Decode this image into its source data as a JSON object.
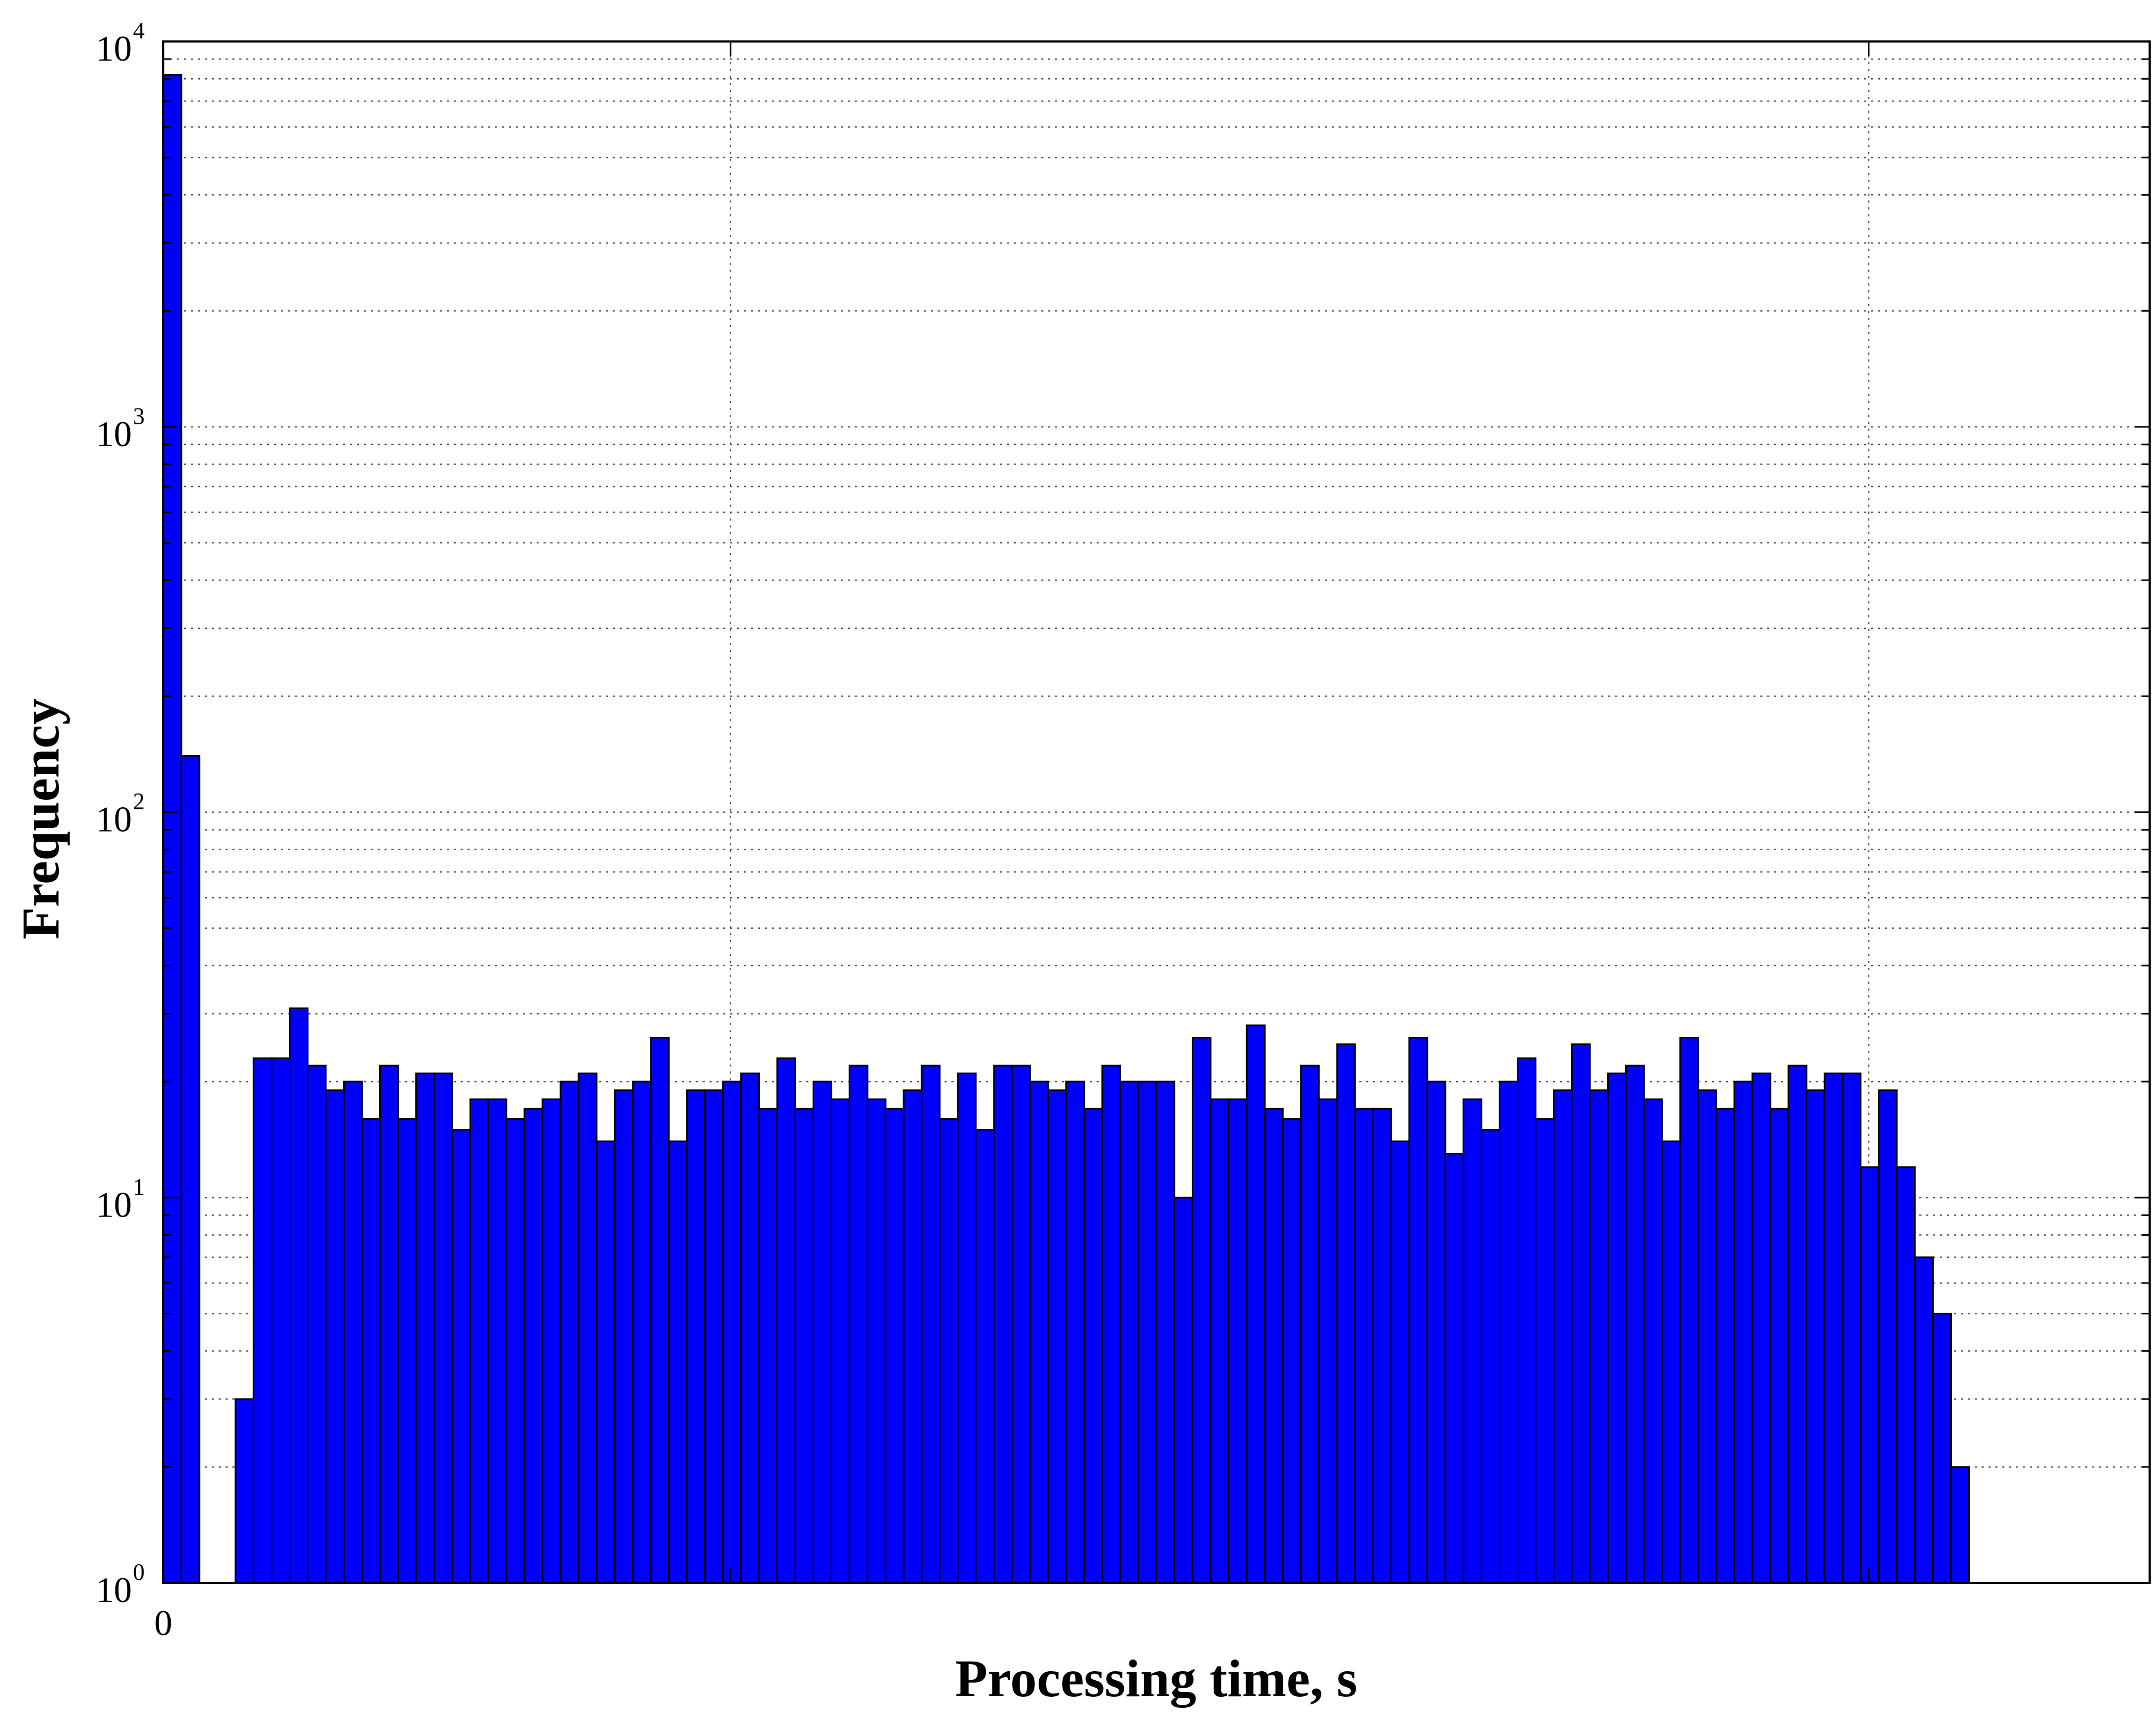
{
  "chart_data": {
    "type": "bar",
    "title": "",
    "xlabel": "Processing time, s",
    "ylabel": "Frequency",
    "y_scale": "log",
    "ylim": [
      1,
      10000
    ],
    "grid": true,
    "bar_color": "#0000ff",
    "x_tick_labels": [
      "0"
    ],
    "y_ticks": [
      {
        "value": 1,
        "base": "10",
        "exp": "0"
      },
      {
        "value": 10,
        "base": "10",
        "exp": "1"
      },
      {
        "value": 100,
        "base": "10",
        "exp": "2"
      },
      {
        "value": 1000,
        "base": "10",
        "exp": "3"
      },
      {
        "value": 10000,
        "base": "10",
        "exp": "4"
      }
    ],
    "bin_count": 110,
    "values": [
      8200,
      140,
      0,
      0,
      3,
      23,
      23,
      31,
      22,
      19,
      20,
      16,
      22,
      16,
      21,
      21,
      15,
      18,
      18,
      16,
      17,
      18,
      20,
      21,
      14,
      19,
      20,
      26,
      14,
      19,
      19,
      20,
      21,
      17,
      23,
      17,
      20,
      18,
      22,
      18,
      17,
      19,
      22,
      16,
      21,
      15,
      22,
      22,
      20,
      19,
      20,
      17,
      22,
      20,
      20,
      20,
      10,
      26,
      18,
      18,
      28,
      17,
      16,
      22,
      18,
      25,
      17,
      17,
      14,
      26,
      20,
      13,
      18,
      15,
      20,
      23,
      16,
      19,
      25,
      19,
      21,
      22,
      18,
      14,
      26,
      19,
      17,
      20,
      21,
      17,
      22,
      19,
      21,
      21,
      12,
      19,
      12,
      7,
      5,
      2,
      0,
      0,
      0,
      0,
      0,
      0,
      0,
      0,
      0,
      0
    ]
  }
}
